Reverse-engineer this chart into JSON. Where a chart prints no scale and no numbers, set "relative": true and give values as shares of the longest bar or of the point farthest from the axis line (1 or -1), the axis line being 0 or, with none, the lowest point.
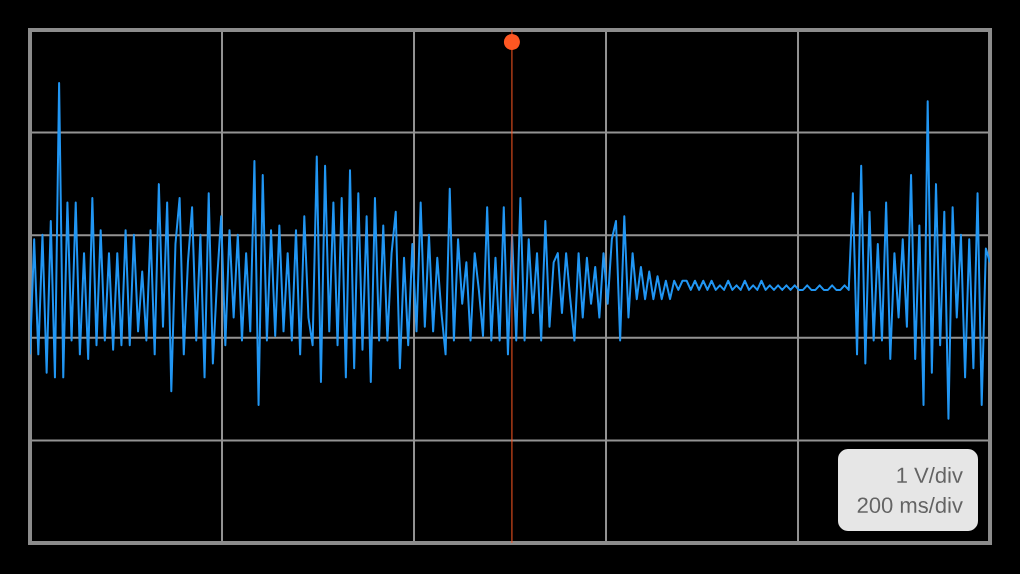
{
  "chart_data": {
    "type": "line",
    "relative": true,
    "grid": true,
    "categories": [
      null,
      null,
      null,
      null,
      null,
      null,
      null,
      null,
      null,
      null,
      null,
      null,
      null,
      null,
      null,
      null,
      null,
      null,
      null,
      null,
      null,
      null,
      null,
      null,
      null,
      null,
      null,
      null,
      null,
      null,
      null,
      null,
      null,
      null,
      null,
      null,
      null,
      null,
      null,
      null,
      null,
      null,
      null,
      null,
      null,
      null,
      null,
      null,
      null,
      null,
      null,
      null,
      null,
      null,
      null,
      null,
      null,
      null,
      null,
      null,
      null,
      null,
      null,
      null,
      null,
      null,
      null,
      null,
      null,
      null,
      null,
      null,
      null,
      null,
      null,
      null,
      null,
      null,
      null,
      null,
      null,
      null,
      null,
      null,
      null,
      null,
      null,
      null,
      null,
      null,
      null,
      null,
      null,
      null,
      null,
      null,
      null,
      null,
      null,
      null,
      null,
      null,
      null,
      null,
      null,
      null,
      null,
      null,
      null,
      null,
      null,
      null,
      null,
      null,
      null,
      null,
      null,
      null,
      null,
      null,
      null,
      null,
      null,
      null,
      null,
      null,
      null,
      null,
      null,
      null,
      null,
      null,
      null,
      null,
      null,
      null,
      null,
      null,
      null,
      null,
      null,
      null,
      null,
      null,
      null,
      null,
      null,
      null,
      null,
      null,
      null,
      null,
      null,
      null,
      null,
      null,
      null,
      null,
      null,
      null,
      null,
      null,
      null,
      null,
      null,
      null,
      null,
      null,
      null,
      null,
      null,
      null,
      null,
      null,
      null,
      null,
      null,
      null,
      null,
      null,
      null,
      null,
      null,
      null,
      null,
      null,
      null,
      null,
      null,
      null,
      null,
      null,
      null,
      null,
      null,
      null,
      null,
      null,
      null,
      null,
      null,
      null,
      null,
      null,
      null,
      null,
      null,
      null,
      null,
      null,
      null,
      null,
      null,
      null,
      null,
      null,
      null,
      null,
      null,
      null,
      null,
      null,
      null,
      null,
      null,
      null,
      null,
      null,
      null,
      null,
      null,
      null
    ],
    "series": [
      {
        "color": "#2196f3",
        "values": [
          0.41,
          0.66,
          0.41,
          0.67,
          0.37,
          0.7,
          0.36,
          1.0,
          0.36,
          0.74,
          0.44,
          0.74,
          0.41,
          0.63,
          0.4,
          0.75,
          0.43,
          0.68,
          0.44,
          0.63,
          0.42,
          0.63,
          0.43,
          0.68,
          0.43,
          0.67,
          0.46,
          0.59,
          0.44,
          0.68,
          0.41,
          0.78,
          0.47,
          0.74,
          0.33,
          0.65,
          0.75,
          0.41,
          0.61,
          0.73,
          0.44,
          0.67,
          0.36,
          0.76,
          0.39,
          0.57,
          0.71,
          0.43,
          0.68,
          0.49,
          0.67,
          0.44,
          0.63,
          0.46,
          0.83,
          0.3,
          0.8,
          0.44,
          0.68,
          0.45,
          0.69,
          0.46,
          0.63,
          0.44,
          0.68,
          0.41,
          0.71,
          0.49,
          0.43,
          0.84,
          0.35,
          0.82,
          0.46,
          0.74,
          0.43,
          0.75,
          0.36,
          0.81,
          0.38,
          0.76,
          0.42,
          0.71,
          0.35,
          0.75,
          0.44,
          0.69,
          0.44,
          0.63,
          0.72,
          0.38,
          0.62,
          0.43,
          0.65,
          0.46,
          0.74,
          0.47,
          0.67,
          0.46,
          0.62,
          0.5,
          0.41,
          0.77,
          0.44,
          0.66,
          0.52,
          0.61,
          0.44,
          0.63,
          0.55,
          0.45,
          0.73,
          0.44,
          0.62,
          0.44,
          0.73,
          0.41,
          0.67,
          0.44,
          0.75,
          0.44,
          0.66,
          0.5,
          0.63,
          0.44,
          0.7,
          0.47,
          0.61,
          0.63,
          0.5,
          0.63,
          0.53,
          0.44,
          0.63,
          0.49,
          0.62,
          0.52,
          0.6,
          0.49,
          0.63,
          0.52,
          0.66,
          0.7,
          0.44,
          0.71,
          0.49,
          0.63,
          0.53,
          0.6,
          0.53,
          0.59,
          0.53,
          0.58,
          0.53,
          0.57,
          0.53,
          0.57,
          0.55,
          0.57,
          0.57,
          0.55,
          0.57,
          0.55,
          0.57,
          0.55,
          0.57,
          0.55,
          0.56,
          0.55,
          0.57,
          0.55,
          0.56,
          0.55,
          0.57,
          0.55,
          0.56,
          0.55,
          0.57,
          0.55,
          0.56,
          0.55,
          0.56,
          0.55,
          0.56,
          0.55,
          0.56,
          0.55,
          0.55,
          0.56,
          0.55,
          0.55,
          0.56,
          0.55,
          0.55,
          0.56,
          0.55,
          0.55,
          0.56,
          0.55,
          0.76,
          0.41,
          0.82,
          0.39,
          0.72,
          0.44,
          0.65,
          0.44,
          0.74,
          0.4,
          0.63,
          0.49,
          0.66,
          0.47,
          0.8,
          0.4,
          0.69,
          0.3,
          0.96,
          0.37,
          0.78,
          0.43,
          0.72,
          0.27,
          0.73,
          0.49,
          0.67,
          0.36,
          0.66,
          0.38,
          0.76,
          0.3,
          0.64,
          0.61
        ]
      }
    ],
    "annotations": [
      "1 V/div",
      "200 ms/div"
    ]
  }
}
